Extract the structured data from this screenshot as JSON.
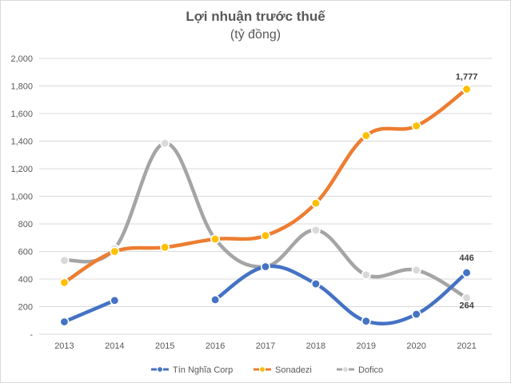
{
  "chart_data": {
    "type": "line",
    "title": "Lợi nhuận trước thuế",
    "subtitle": "(tỷ đồng)",
    "categories": [
      "2013",
      "2014",
      "2015",
      "2016",
      "2017",
      "2018",
      "2019",
      "2020",
      "2021"
    ],
    "ylim": [
      0,
      2000
    ],
    "yticks": [
      0,
      200,
      400,
      600,
      800,
      1000,
      1200,
      1400,
      1600,
      1800,
      2000
    ],
    "ytick_labels": [
      "-",
      "200",
      "400",
      "600",
      "800",
      "1,000",
      "1,200",
      "1,400",
      "1,600",
      "1,800",
      "2,000"
    ],
    "grid": true,
    "legend_position": "bottom",
    "smooth": true,
    "series": [
      {
        "name": "Tín Nghĩa Corp",
        "color": "#4472c4",
        "values": [
          90,
          245,
          null,
          250,
          490,
          365,
          95,
          145,
          446
        ]
      },
      {
        "name": "Sonadezi",
        "color": "#ed7d31",
        "values": [
          375,
          600,
          630,
          690,
          715,
          950,
          1440,
          1510,
          1777
        ]
      },
      {
        "name": "Dofico",
        "color": "#a5a5a5",
        "values": [
          535,
          620,
          1385,
          690,
          490,
          755,
          430,
          465,
          264
        ]
      }
    ],
    "data_labels": [
      {
        "series": 1,
        "index": 8,
        "text": "1,777"
      },
      {
        "series": 0,
        "index": 8,
        "text": "446"
      },
      {
        "series": 2,
        "index": 8,
        "text": "264"
      }
    ]
  }
}
